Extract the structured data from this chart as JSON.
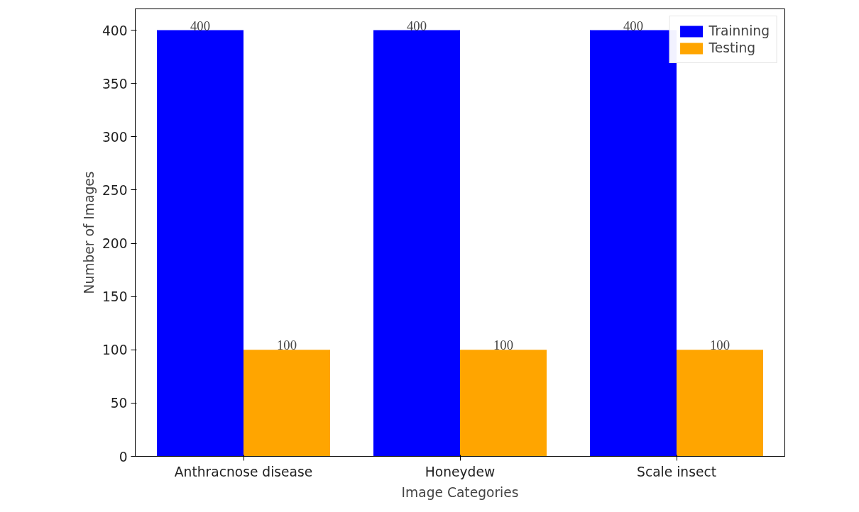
{
  "chart_data": {
    "type": "bar",
    "xlabel": "Image Categories",
    "ylabel": "Number of Images",
    "categories": [
      "Anthracnose disease",
      "Honeydew",
      "Scale insect"
    ],
    "series": [
      {
        "name": "Trainning",
        "color": "#0000ff",
        "values": [
          400,
          400,
          400
        ]
      },
      {
        "name": "Testing",
        "color": "#ffa500",
        "values": [
          100,
          100,
          100
        ]
      }
    ],
    "ylim": [
      0,
      420
    ],
    "yticks": [
      0,
      50,
      100,
      150,
      200,
      250,
      300,
      350,
      400
    ],
    "grid": false,
    "legend": "top right",
    "data_labels": true
  }
}
